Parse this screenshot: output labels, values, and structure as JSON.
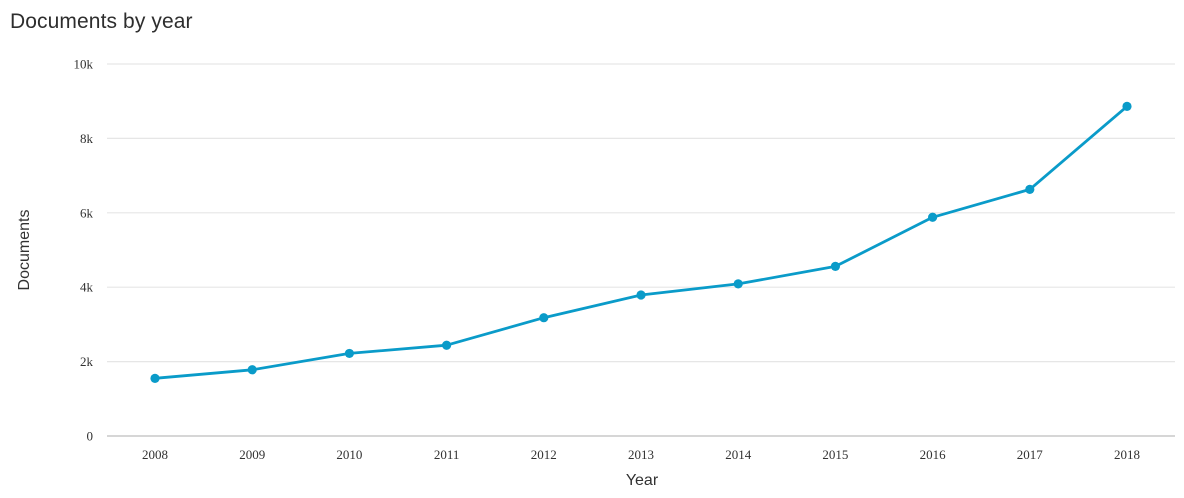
{
  "chart_data": {
    "type": "line",
    "title": "Documents by year",
    "xlabel": "Year",
    "ylabel": "Documents",
    "categories": [
      "2008",
      "2009",
      "2010",
      "2011",
      "2012",
      "2013",
      "2014",
      "2015",
      "2016",
      "2017",
      "2018"
    ],
    "series": [
      {
        "values": [
          1550,
          1780,
          2220,
          2440,
          3180,
          3790,
          4090,
          4560,
          5880,
          6630,
          8860
        ]
      }
    ],
    "ylim": [
      0,
      10000
    ],
    "yticks": [
      0,
      2000,
      4000,
      6000,
      8000,
      10000
    ],
    "ytick_labels": [
      "0",
      "2k",
      "4k",
      "6k",
      "8k",
      "10k"
    ],
    "grid": true,
    "legend": "none",
    "colors": {
      "line": "#0a9bc9",
      "grid": "#e6e6e6",
      "axis": "#c8c8c8"
    }
  }
}
